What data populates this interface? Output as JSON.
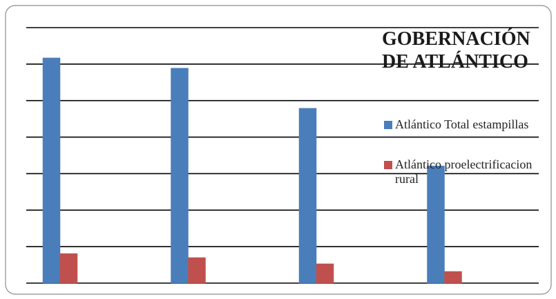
{
  "chart_data": {
    "type": "bar",
    "title": "GOBERNACIÓN DE ATLÁNTICO",
    "categories": [
      null,
      null,
      null,
      null
    ],
    "series": [
      {
        "name": "Atlántico Total estampillas",
        "color": "#4a7ebb",
        "values": [
          6.17,
          5.89,
          4.79,
          3.21
        ]
      },
      {
        "name": "Atlántico proelectrificacion rural",
        "color": "#c0504d",
        "values": [
          0.81,
          0.7,
          0.53,
          0.32
        ]
      }
    ],
    "ylim": [
      0,
      7
    ],
    "yticks": [
      0,
      1,
      2,
      3,
      4,
      5,
      6,
      7
    ],
    "grid": true
  }
}
